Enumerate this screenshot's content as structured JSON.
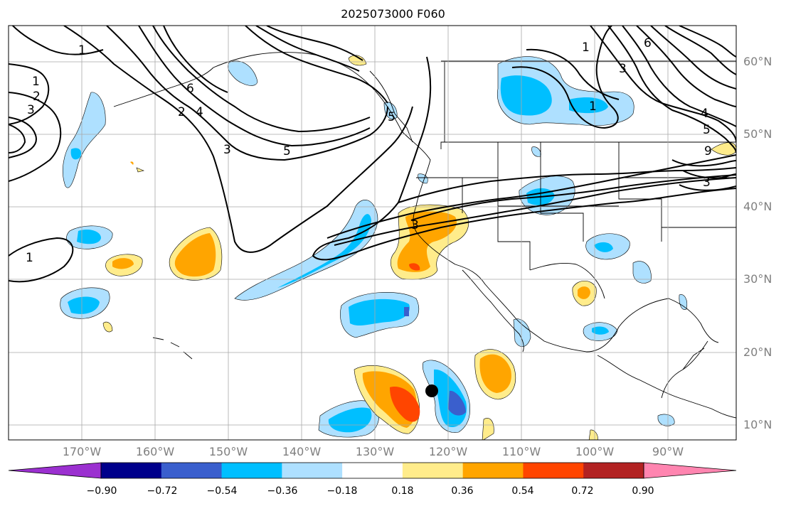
{
  "title": "2025073000 F060",
  "lon_labels": [
    "170°W",
    "160°W",
    "150°W",
    "140°W",
    "130°W",
    "120°W",
    "110°W",
    "100°W",
    "90°W"
  ],
  "lat_labels": [
    "60°N",
    "50°N",
    "40°N",
    "30°N",
    "20°N",
    "10°N"
  ],
  "contour_labels": [
    "1",
    "1",
    "2",
    "3",
    "1",
    "2",
    "6",
    "4",
    "3",
    "5",
    "5",
    "3",
    "6",
    "1",
    "4",
    "5",
    "9",
    "3",
    "3",
    "1"
  ],
  "dot_marker": "storm-center-dot",
  "colorbar": {
    "ticks": [
      "−0.90",
      "−0.72",
      "−0.54",
      "−0.36",
      "−0.18",
      "0.18",
      "0.36",
      "0.54",
      "0.72",
      "0.90"
    ],
    "colors": [
      "#9b30d0",
      "#00008b",
      "#3a5fcd",
      "#00bfff",
      "#aee0ff",
      "#ffffff",
      "#ffec8b",
      "#ffa500",
      "#ff4500",
      "#b22222",
      "#ff85b0"
    ]
  }
}
